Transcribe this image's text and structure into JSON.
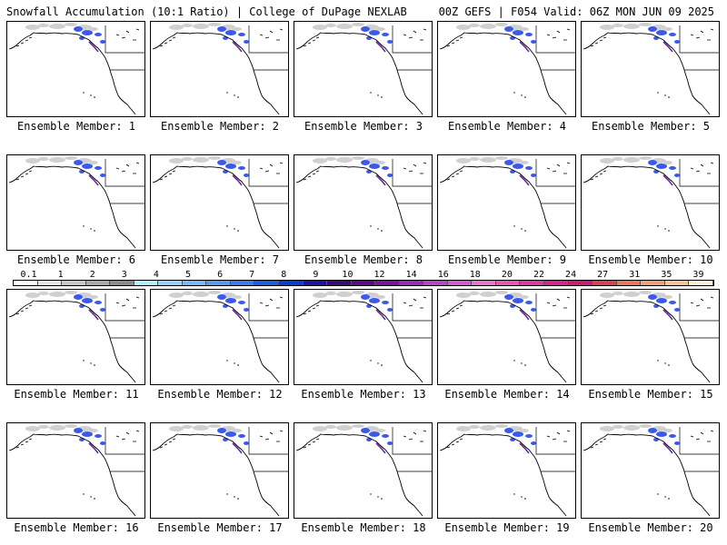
{
  "header": {
    "left_title": "Snowfall Accumulation (10:1 Ratio) | College of DuPage NEXLAB",
    "right_title": "00Z GEFS | F054 Valid: 06Z MON JUN 09 2025"
  },
  "panels": [
    {
      "label": "Ensemble Member: 1"
    },
    {
      "label": "Ensemble Member: 2"
    },
    {
      "label": "Ensemble Member: 3"
    },
    {
      "label": "Ensemble Member: 4"
    },
    {
      "label": "Ensemble Member: 5"
    },
    {
      "label": "Ensemble Member: 6"
    },
    {
      "label": "Ensemble Member: 7"
    },
    {
      "label": "Ensemble Member: 8"
    },
    {
      "label": "Ensemble Member: 9"
    },
    {
      "label": "Ensemble Member: 10"
    },
    {
      "label": "Ensemble Member: 11"
    },
    {
      "label": "Ensemble Member: 12"
    },
    {
      "label": "Ensemble Member: 13"
    },
    {
      "label": "Ensemble Member: 14"
    },
    {
      "label": "Ensemble Member: 15"
    },
    {
      "label": "Ensemble Member: 16"
    },
    {
      "label": "Ensemble Member: 17"
    },
    {
      "label": "Ensemble Member: 18"
    },
    {
      "label": "Ensemble Member: 19"
    },
    {
      "label": "Ensemble Member: 20"
    }
  ],
  "legend": {
    "ticks": [
      "0.1",
      "1",
      "2",
      "3",
      "4",
      "5",
      "6",
      "7",
      "8",
      "9",
      "10",
      "12",
      "14",
      "16",
      "18",
      "20",
      "22",
      "24",
      "27",
      "31",
      "35",
      "39"
    ],
    "colors": [
      "#ffffff",
      "#e6e6e6",
      "#c8c8c8",
      "#aaaaaa",
      "#8c8c8c",
      "#b4f0fa",
      "#96d2fa",
      "#78b9fa",
      "#5a9bf0",
      "#3c7dea",
      "#1e5fe0",
      "#0a3cd2",
      "#1e14a0",
      "#3c0a78",
      "#5a0a8c",
      "#7814a0",
      "#962db4",
      "#b446c8",
      "#d25ad2",
      "#e678c8",
      "#e65ab4",
      "#dc3ca0",
      "#d2288c",
      "#c81e78",
      "#d24650",
      "#e67864",
      "#f0a07d",
      "#fac3a0",
      "#fff0d2"
    ]
  }
}
